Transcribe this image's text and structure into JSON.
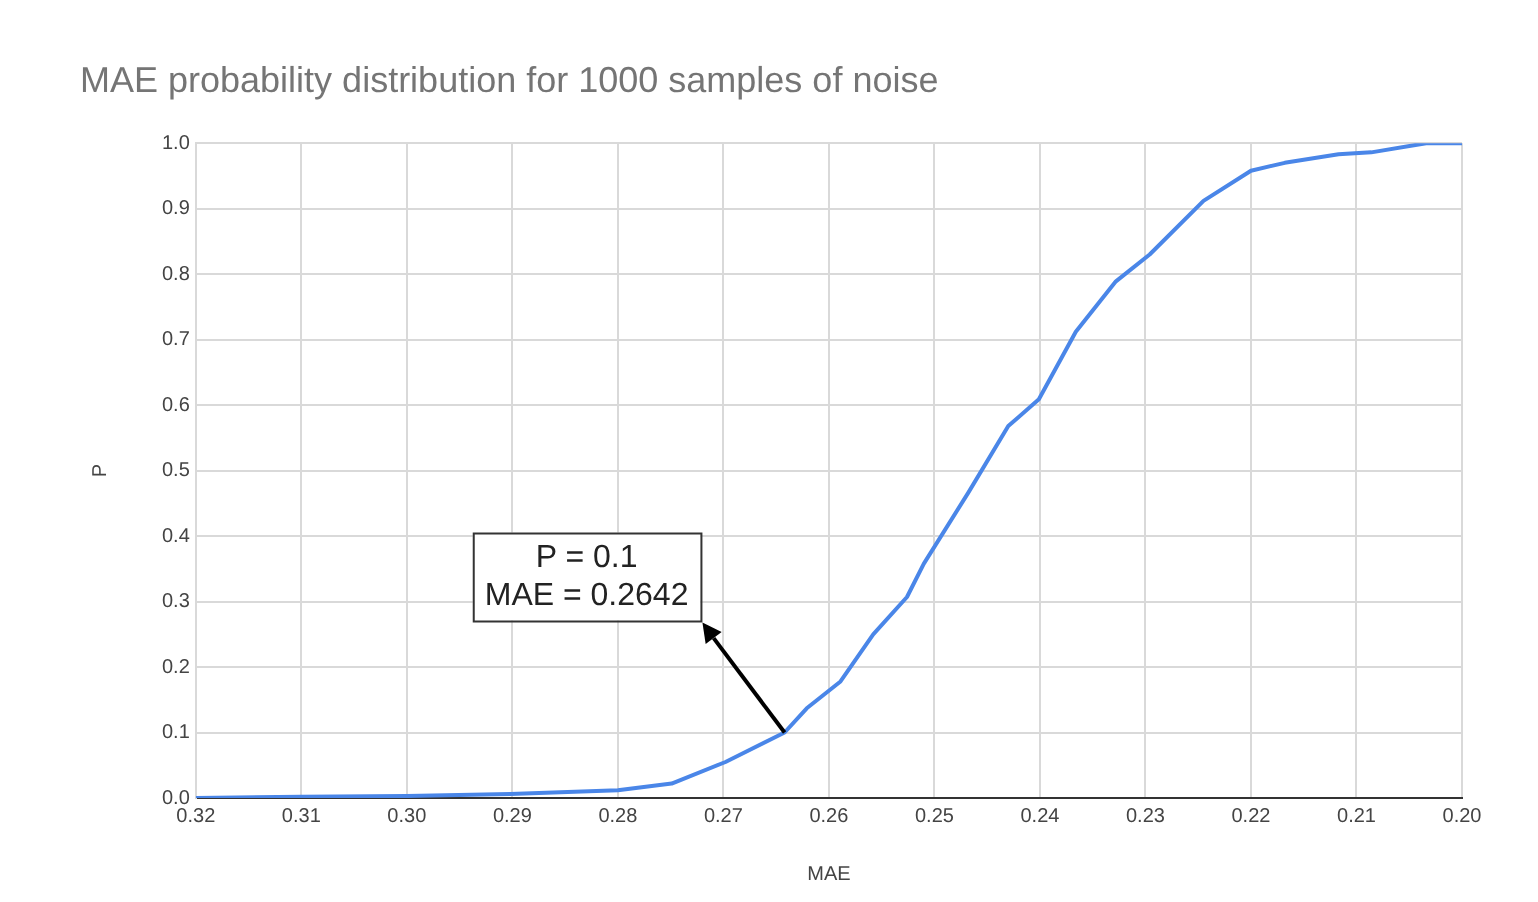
{
  "chart_data": {
    "type": "line",
    "title": "MAE probability distribution for 1000 samples of noise",
    "xlabel": "MAE",
    "ylabel": "P",
    "x": [
      0.32,
      0.31,
      0.3,
      0.2902,
      0.28,
      0.2749,
      0.2698,
      0.2642,
      0.2621,
      0.2589,
      0.2558,
      0.2526,
      0.251,
      0.2468,
      0.243,
      0.2401,
      0.2366,
      0.2328,
      0.2296,
      0.2245,
      0.22,
      0.2168,
      0.2117,
      0.2086,
      0.2034,
      0.2
    ],
    "series": [
      {
        "color": "#4a86e8",
        "values": [
          0,
          0.002,
          0.003,
          0.006,
          0.012,
          0.022,
          0.055,
          0.1,
          0.137,
          0.178,
          0.25,
          0.307,
          0.358,
          0.466,
          0.568,
          0.609,
          0.712,
          0.789,
          0.83,
          0.912,
          0.958,
          0.97,
          0.983,
          0.986,
          1,
          1
        ]
      }
    ],
    "xlim": [
      0.32,
      0.2
    ],
    "xticks": [
      0.32,
      0.31,
      {
        "value": 0.3,
        "label": "0.30"
      },
      0.29,
      0.28,
      0.27,
      0.26,
      0.25,
      0.24,
      0.23,
      0.22,
      0.21,
      {
        "value": 0.2,
        "label": "0.20"
      }
    ],
    "ylim": [
      0,
      1
    ],
    "yticks": [
      {
        "value": 0,
        "label": "0.0"
      },
      0.1,
      0.2,
      0.3,
      0.4,
      0.5,
      0.6,
      0.7,
      0.8,
      0.9,
      {
        "value": 1,
        "label": "1.0"
      }
    ],
    "grid": true,
    "legend": false,
    "marker": "none",
    "line_style": "solid",
    "annotations": [
      {
        "text": "P = 0.1\nMAE = 0.2642",
        "x": 0.2642,
        "y": 0.1
      }
    ]
  }
}
